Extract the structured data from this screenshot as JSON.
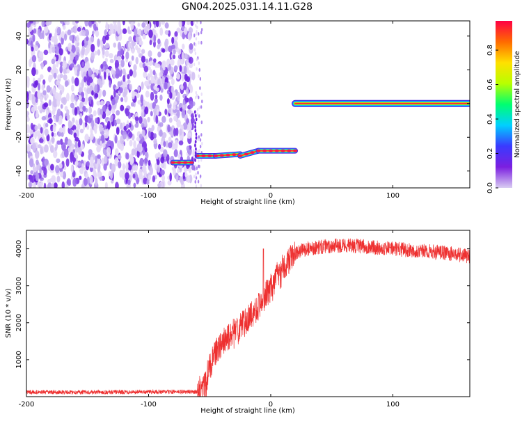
{
  "title": "GN04.2025.031.14.11.G28",
  "chart_data": [
    {
      "type": "heatmap",
      "xlabel": "Height of straight line (km)",
      "ylabel": "Frequency (Hz)",
      "xlim": [
        -200,
        163
      ],
      "ylim": [
        -50,
        49
      ],
      "x_ticks": [
        "-200",
        "-100",
        "0",
        "100"
      ],
      "y_ticks": [
        "-40",
        "-20",
        "0",
        "20",
        "40"
      ],
      "colorbar": {
        "label": "Normalized spectral amplitude",
        "range": [
          0.0,
          0.97
        ],
        "ticks": [
          "0.0",
          "0.2",
          "0.4",
          "0.6",
          "0.8"
        ],
        "colors": [
          "#d9ccf2",
          "#7b1fe0",
          "#3a3aff",
          "#00d0ff",
          "#00ff70",
          "#b8ff00",
          "#ffe000",
          "#ff6a00",
          "#ff0044"
        ]
      },
      "features": {
        "noise_region_x": [
          -200,
          -63
        ],
        "signal_segments": [
          {
            "x": [
              -80,
              -65
            ],
            "y": [
              -35,
              -35
            ]
          },
          {
            "x": [
              -60,
              -45
            ],
            "y": [
              -31,
              -31
            ]
          },
          {
            "x": [
              -45,
              -25
            ],
            "y": [
              -31,
              -30
            ]
          },
          {
            "x": [
              -25,
              -10
            ],
            "y": [
              -31,
              -28
            ]
          },
          {
            "x": [
              -10,
              20
            ],
            "y": [
              -28,
              -28
            ]
          },
          {
            "x": [
              20,
              163
            ],
            "y": [
              0,
              0
            ]
          }
        ]
      }
    },
    {
      "type": "line",
      "xlabel": "Height of straight line (km)",
      "ylabel": "SNR (10 * v/v)",
      "xlim": [
        -200,
        163
      ],
      "ylim": [
        0,
        4500
      ],
      "x_ticks": [
        "-200",
        "-100",
        "0",
        "100"
      ],
      "y_ticks": [
        "1000",
        "2000",
        "3000",
        "4000"
      ],
      "color": "#ee3030",
      "series": [
        {
          "x": [
            -200,
            -150,
            -100,
            -60,
            -55,
            -50,
            -45,
            -40,
            -35,
            -30,
            -25,
            -20,
            -15,
            -10,
            -5,
            0,
            5,
            10,
            15,
            20,
            25,
            30,
            40,
            60,
            80,
            100,
            120,
            140,
            163
          ],
          "values": [
            120,
            120,
            130,
            130,
            300,
            800,
            1200,
            1450,
            1600,
            1750,
            1900,
            2050,
            2250,
            2450,
            2700,
            2950,
            3250,
            3500,
            3700,
            3850,
            3950,
            4000,
            4050,
            4100,
            4050,
            4000,
            3950,
            3900,
            3800
          ]
        }
      ],
      "spike": {
        "x": -6,
        "y": 4000
      }
    }
  ]
}
